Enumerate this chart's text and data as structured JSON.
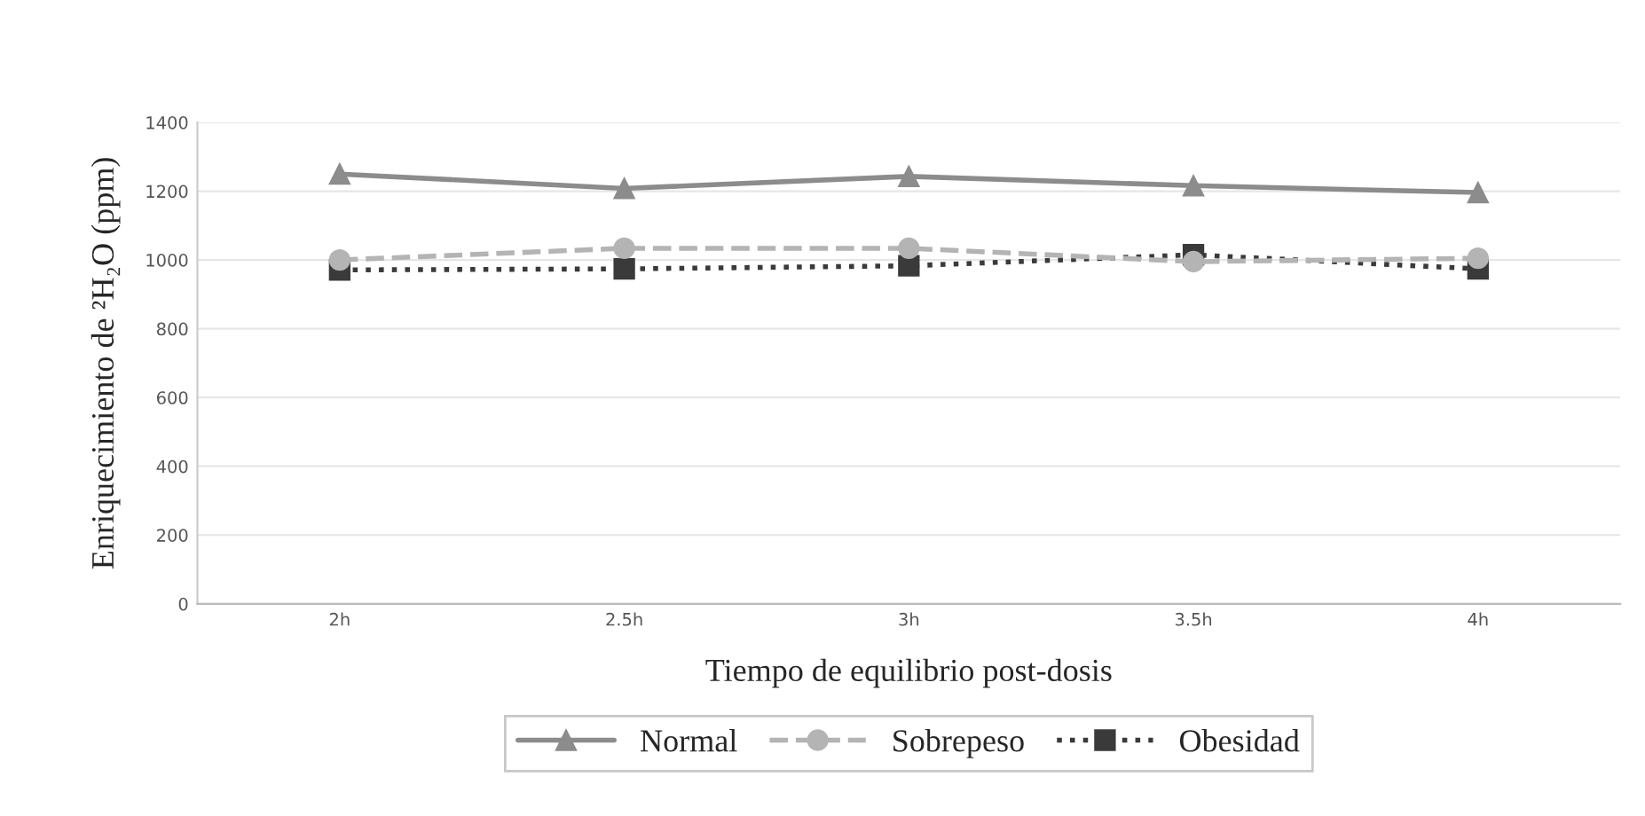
{
  "chart_data": {
    "type": "line",
    "xlabel": "Tiempo de equilibrio post-dosis",
    "ylabel": "Enriquecimiento de ²H₂O (ppm)",
    "categories": [
      "2h",
      "2.5h",
      "3h",
      "3.5h",
      "4h"
    ],
    "series": [
      {
        "name": "Normal",
        "color": "#8c8c8c",
        "values": [
          1250,
          1208,
          1243,
          1216,
          1196
        ],
        "marker": "triangle",
        "line_style": "solid"
      },
      {
        "name": "Sobrepeso",
        "color": "#b4b4b4",
        "values": [
          1000,
          1034,
          1034,
          995,
          1005
        ],
        "marker": "circle",
        "line_style": "dashed"
      },
      {
        "name": "Obesidad",
        "color": "#3a3a3a",
        "values": [
          971,
          974,
          983,
          1015,
          974
        ],
        "marker": "square",
        "line_style": "dotted"
      }
    ],
    "ylim": [
      0,
      1400
    ],
    "yticks": [
      0,
      200,
      400,
      600,
      800,
      1000,
      1200,
      1400
    ],
    "grid": "y",
    "legend": "bottom"
  }
}
